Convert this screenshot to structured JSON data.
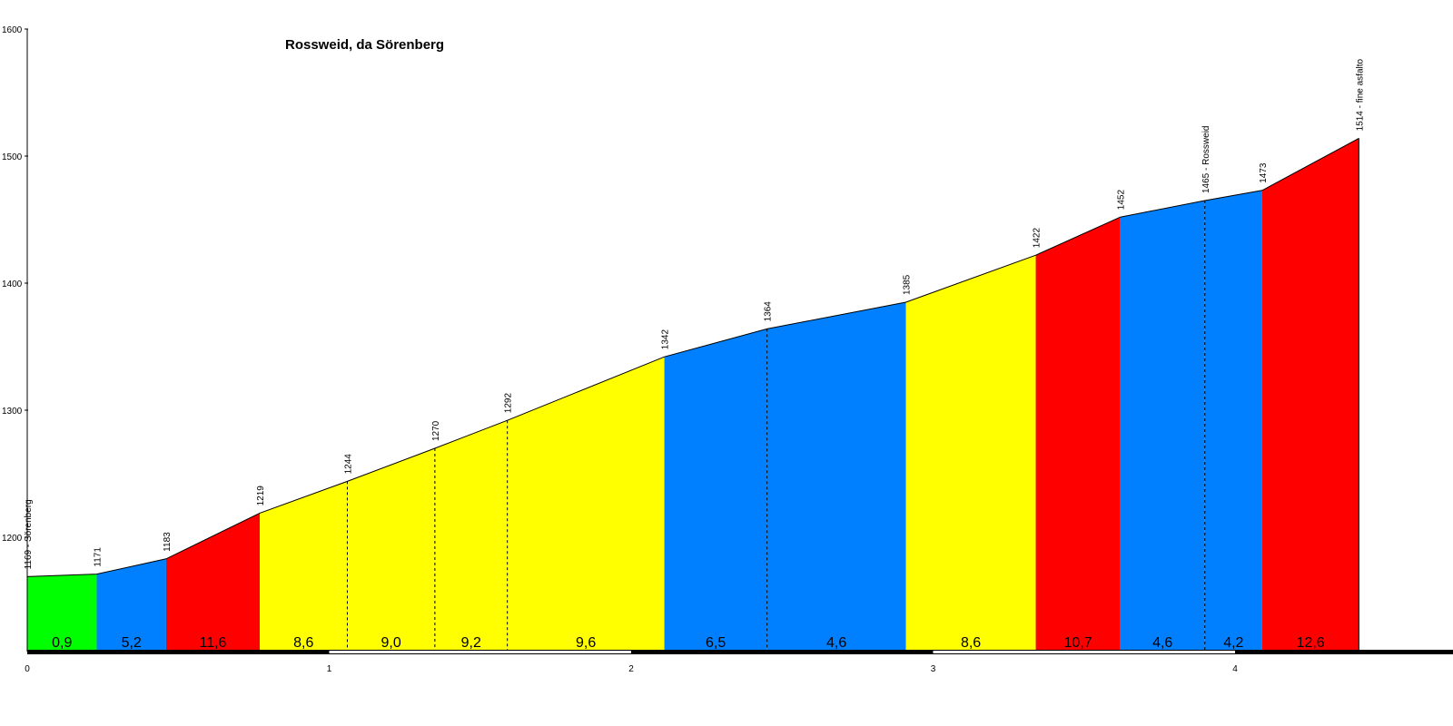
{
  "chart_data": {
    "type": "area",
    "title": "Rossweid, da Sörenberg",
    "xlabel": "",
    "ylabel": "",
    "xlim": [
      0,
      4.63
    ],
    "ylim": [
      1115,
      1600
    ],
    "x_ticks": [
      "0",
      "1",
      "2",
      "3",
      "4"
    ],
    "y_ticks": [
      "1200",
      "1300",
      "1400",
      "1500",
      "1600"
    ],
    "grid": false,
    "legend": "none",
    "points": [
      {
        "x": 0.0,
        "y": 1169,
        "label": "1169 - Sörenberg"
      },
      {
        "x": 0.23,
        "y": 1171,
        "label": "1171"
      },
      {
        "x": 0.46,
        "y": 1183,
        "label": "1183"
      },
      {
        "x": 0.77,
        "y": 1219,
        "label": "1219"
      },
      {
        "x": 1.06,
        "y": 1244,
        "label": "1244"
      },
      {
        "x": 1.35,
        "y": 1270,
        "label": "1270"
      },
      {
        "x": 1.59,
        "y": 1292,
        "label": "1292"
      },
      {
        "x": 2.11,
        "y": 1342,
        "label": "1342"
      },
      {
        "x": 2.45,
        "y": 1364,
        "label": "1364"
      },
      {
        "x": 2.91,
        "y": 1385,
        "label": "1385"
      },
      {
        "x": 3.34,
        "y": 1422,
        "label": "1422"
      },
      {
        "x": 3.62,
        "y": 1452,
        "label": "1452"
      },
      {
        "x": 3.9,
        "y": 1465,
        "label": "1465 - Rossweid"
      },
      {
        "x": 4.09,
        "y": 1473,
        "label": "1473"
      },
      {
        "x": 4.41,
        "y": 1514,
        "label": "1514 - fine asfalto"
      }
    ],
    "segments": [
      {
        "grade": "0,9",
        "color": "#00ff00"
      },
      {
        "grade": "5,2",
        "color": "#0080ff"
      },
      {
        "grade": "11,6",
        "color": "#ff0000"
      },
      {
        "grade": "8,6",
        "color": "#ffff00"
      },
      {
        "grade": "9,0",
        "color": "#ffff00"
      },
      {
        "grade": "9,2",
        "color": "#ffff00"
      },
      {
        "grade": "9,6",
        "color": "#ffff00"
      },
      {
        "grade": "6,5",
        "color": "#0080ff"
      },
      {
        "grade": "4,6",
        "color": "#0080ff"
      },
      {
        "grade": "8,6",
        "color": "#ffff00"
      },
      {
        "grade": "10,7",
        "color": "#ff0000"
      },
      {
        "grade": "4,6",
        "color": "#0080ff"
      },
      {
        "grade": "4,2",
        "color": "#0080ff"
      },
      {
        "grade": "12,6",
        "color": "#ff0000"
      }
    ],
    "dashed_boundaries": [
      4,
      5,
      6,
      8,
      12
    ]
  }
}
